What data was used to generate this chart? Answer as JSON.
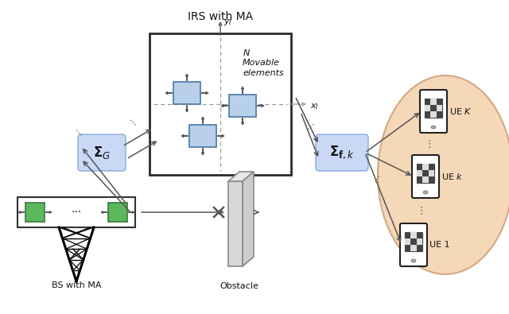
{
  "title": "IRS with MA",
  "bs_label": "BS with MA",
  "obstacle_label": "Obstacle",
  "sigma_g_label": "$\\boldsymbol{\\Sigma}_G$",
  "sigma_f_label": "$\\boldsymbol{\\Sigma}_{\\mathbf{f},k}$",
  "ue_k_label": "UE $K$",
  "ue_k_lower_label": "UE $k$",
  "ue_1_label": "UE 1",
  "bg_color": "#ffffff",
  "irs_box_color": "#2a2a2a",
  "irs_element_color": "#b8d0ea",
  "irs_element_edge": "#5580aa",
  "bs_antenna_color": "#5cb85c",
  "bs_antenna_edge": "#3a7a3a",
  "sigma_box_color": "#c8d8f5",
  "sigma_box_edge": "#8aabdd",
  "ellipse_color": "#f5d8b8",
  "ellipse_edge": "#d4a882",
  "arrow_color": "#555555",
  "dashed_color": "#999999",
  "text_color": "#111111"
}
